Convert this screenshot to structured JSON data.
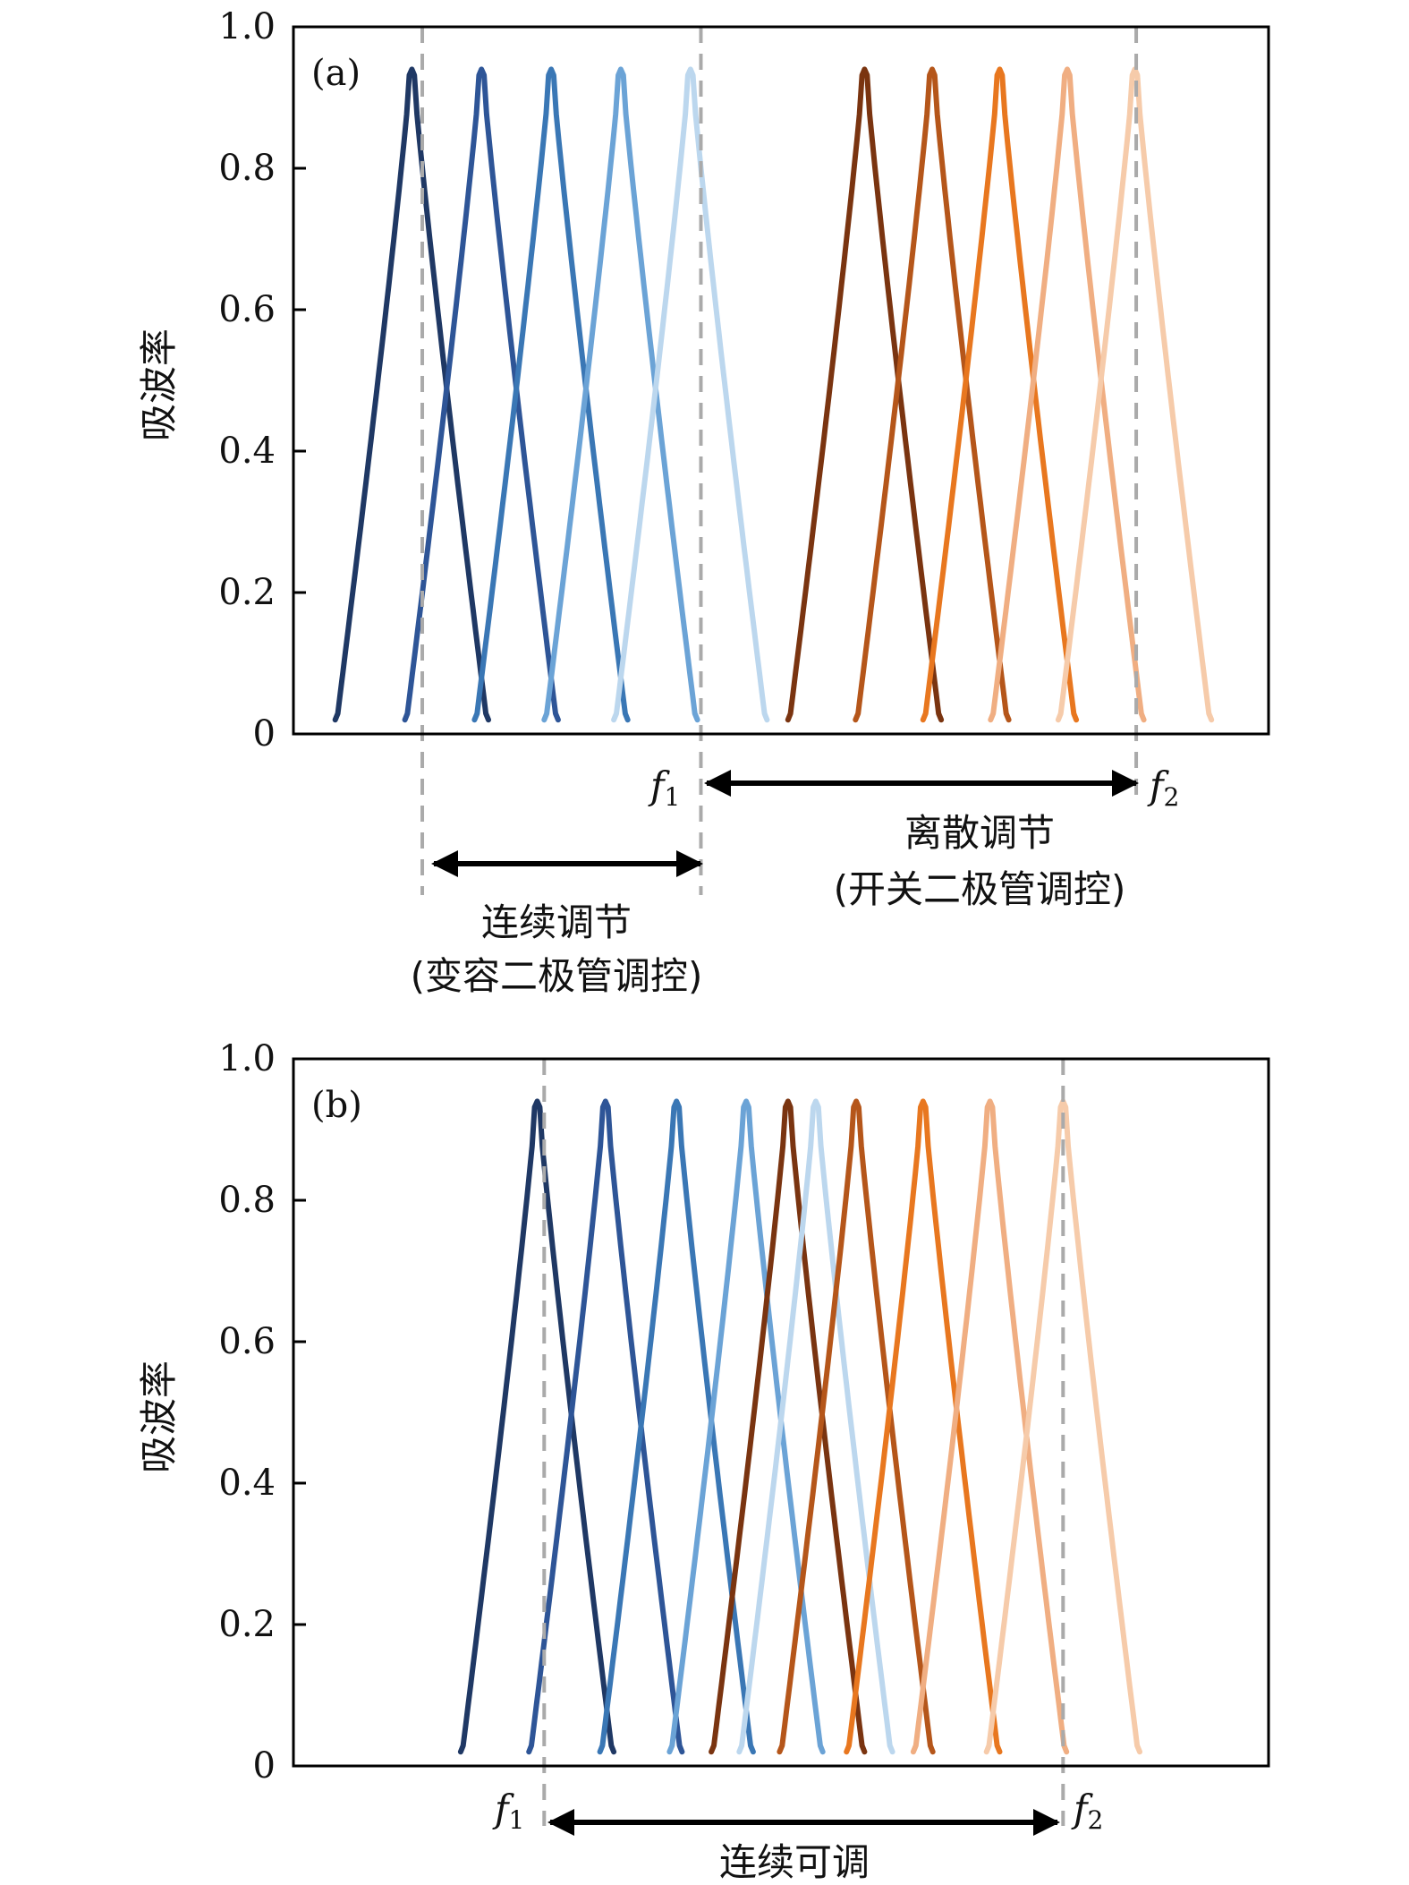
{
  "chart_data": [
    {
      "type": "line",
      "panel_label": "(a)",
      "ylabel": "吸波率",
      "xlabel": "",
      "ylim": [
        0,
        1.0
      ],
      "xlim": [
        0,
        14
      ],
      "yticks": [
        0,
        0.2,
        0.4,
        0.6,
        0.8,
        1.0
      ],
      "ytick_labels": [
        "0",
        "0.2",
        "0.4",
        "0.6",
        "0.8",
        "1.0"
      ],
      "peak_value": 0.94,
      "half_width": 1.1,
      "series": [
        {
          "name": "blue-1",
          "color": "#1f3864",
          "center": 1.7
        },
        {
          "name": "blue-2",
          "color": "#2e5597",
          "center": 2.7
        },
        {
          "name": "blue-3",
          "color": "#3a77b5",
          "center": 3.7
        },
        {
          "name": "blue-4",
          "color": "#6ba3d6",
          "center": 4.7
        },
        {
          "name": "blue-5",
          "color": "#bcd7ee",
          "center": 5.7
        },
        {
          "name": "orange-1",
          "color": "#7a3410",
          "center": 8.2
        },
        {
          "name": "orange-2",
          "color": "#b5561a",
          "center": 9.17
        },
        {
          "name": "orange-3",
          "color": "#e8771f",
          "center": 10.14
        },
        {
          "name": "orange-4",
          "color": "#f0ae82",
          "center": 11.11
        },
        {
          "name": "orange-5",
          "color": "#f6cbaa",
          "center": 12.08
        }
      ],
      "dashed_lines": [
        1.85,
        5.85,
        12.1
      ],
      "f1_label": "f",
      "f1_sub": "1",
      "f2_label": "f",
      "f2_sub": "2",
      "annot_continuous_line1": "连续调节",
      "annot_continuous_line2": "(变容二极管调控)",
      "annot_discrete_line1": "离散调节",
      "annot_discrete_line2": "(开关二极管调控)"
    },
    {
      "type": "line",
      "panel_label": "(b)",
      "ylabel": "吸波率",
      "xlabel": "",
      "ylim": [
        0,
        1.0
      ],
      "xlim": [
        0,
        14
      ],
      "yticks": [
        0,
        0.2,
        0.4,
        0.6,
        0.8,
        1.0
      ],
      "ytick_labels": [
        "0",
        "0.2",
        "0.4",
        "0.6",
        "0.8",
        "1.0"
      ],
      "peak_value": 0.94,
      "half_width": 1.1,
      "series": [
        {
          "name": "blue-1",
          "color": "#1f3864",
          "center": 3.5
        },
        {
          "name": "blue-2",
          "color": "#2e5597",
          "center": 4.48
        },
        {
          "name": "blue-3",
          "color": "#3a77b5",
          "center": 5.5
        },
        {
          "name": "blue-4",
          "color": "#6ba3d6",
          "center": 6.5
        },
        {
          "name": "orange-1",
          "color": "#7a3410",
          "center": 7.1
        },
        {
          "name": "blue-5",
          "color": "#bcd7ee",
          "center": 7.5
        },
        {
          "name": "orange-2",
          "color": "#b5561a",
          "center": 8.08
        },
        {
          "name": "orange-3",
          "color": "#e8771f",
          "center": 9.04
        },
        {
          "name": "orange-4",
          "color": "#f0ae82",
          "center": 10.0
        },
        {
          "name": "orange-5",
          "color": "#f6cbaa",
          "center": 11.05
        }
      ],
      "dashed_lines": [
        3.6,
        11.05
      ],
      "f1_label": "f",
      "f1_sub": "1",
      "f2_label": "f",
      "f2_sub": "2",
      "annot_continuous_line1": "连续可调"
    }
  ]
}
